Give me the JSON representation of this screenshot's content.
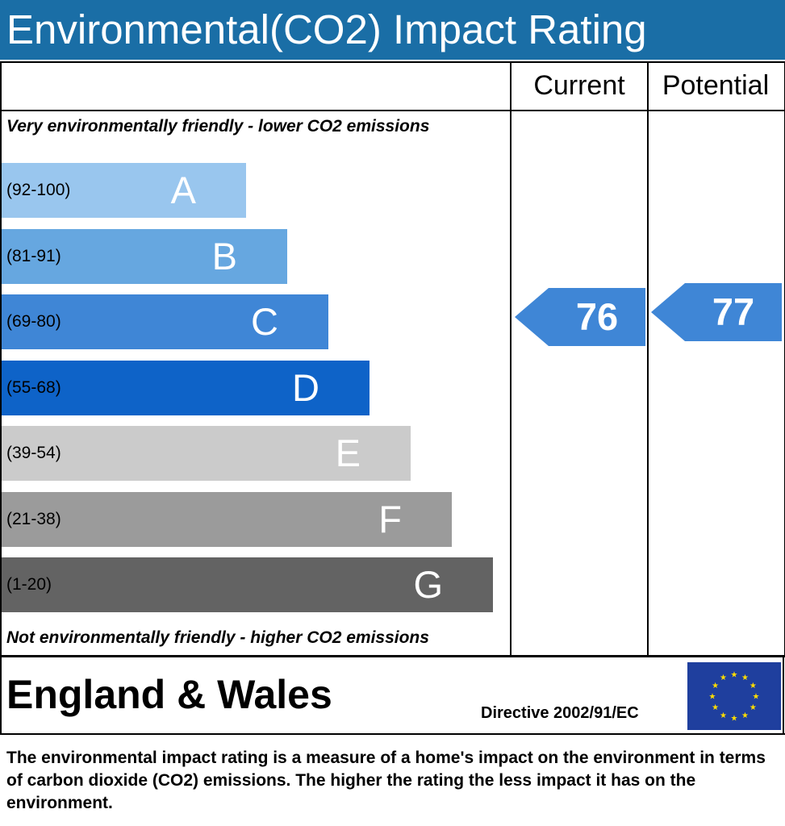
{
  "header": {
    "title": "Environmental(CO2) Impact Rating"
  },
  "columns": {
    "current": "Current",
    "potential": "Potential"
  },
  "captions": {
    "top": "Very environmentally friendly - lower CO2 emissions",
    "bottom": "Not environmentally friendly - higher CO2 emissions"
  },
  "chart_data": {
    "type": "bar",
    "title": "Environmental(CO2) Impact Rating",
    "bands": [
      {
        "letter": "A",
        "range": "(92-100)",
        "color": "#99c6ee"
      },
      {
        "letter": "B",
        "range": "(81-91)",
        "color": "#66a7e0"
      },
      {
        "letter": "C",
        "range": "(69-80)",
        "color": "#3f86d6"
      },
      {
        "letter": "D",
        "range": "(55-68)",
        "color": "#0e63c8"
      },
      {
        "letter": "E",
        "range": "(39-54)",
        "color": "#cbcbcb"
      },
      {
        "letter": "F",
        "range": "(21-38)",
        "color": "#9b9b9b"
      },
      {
        "letter": "G",
        "range": "(1-20)",
        "color": "#636363"
      }
    ],
    "current": {
      "value": "76",
      "band": "C",
      "color": "#3f86d6"
    },
    "potential": {
      "value": "77",
      "band": "C",
      "color": "#3f86d6"
    }
  },
  "footer": {
    "region": "England & Wales",
    "directive": "Directive 2002/91/EC",
    "flag_icon": "eu-flag-icon"
  },
  "description": "The environmental impact rating is a measure of a home's impact on the environment in terms of carbon dioxide (CO2) emissions. The higher the rating the less impact it has on the environment."
}
